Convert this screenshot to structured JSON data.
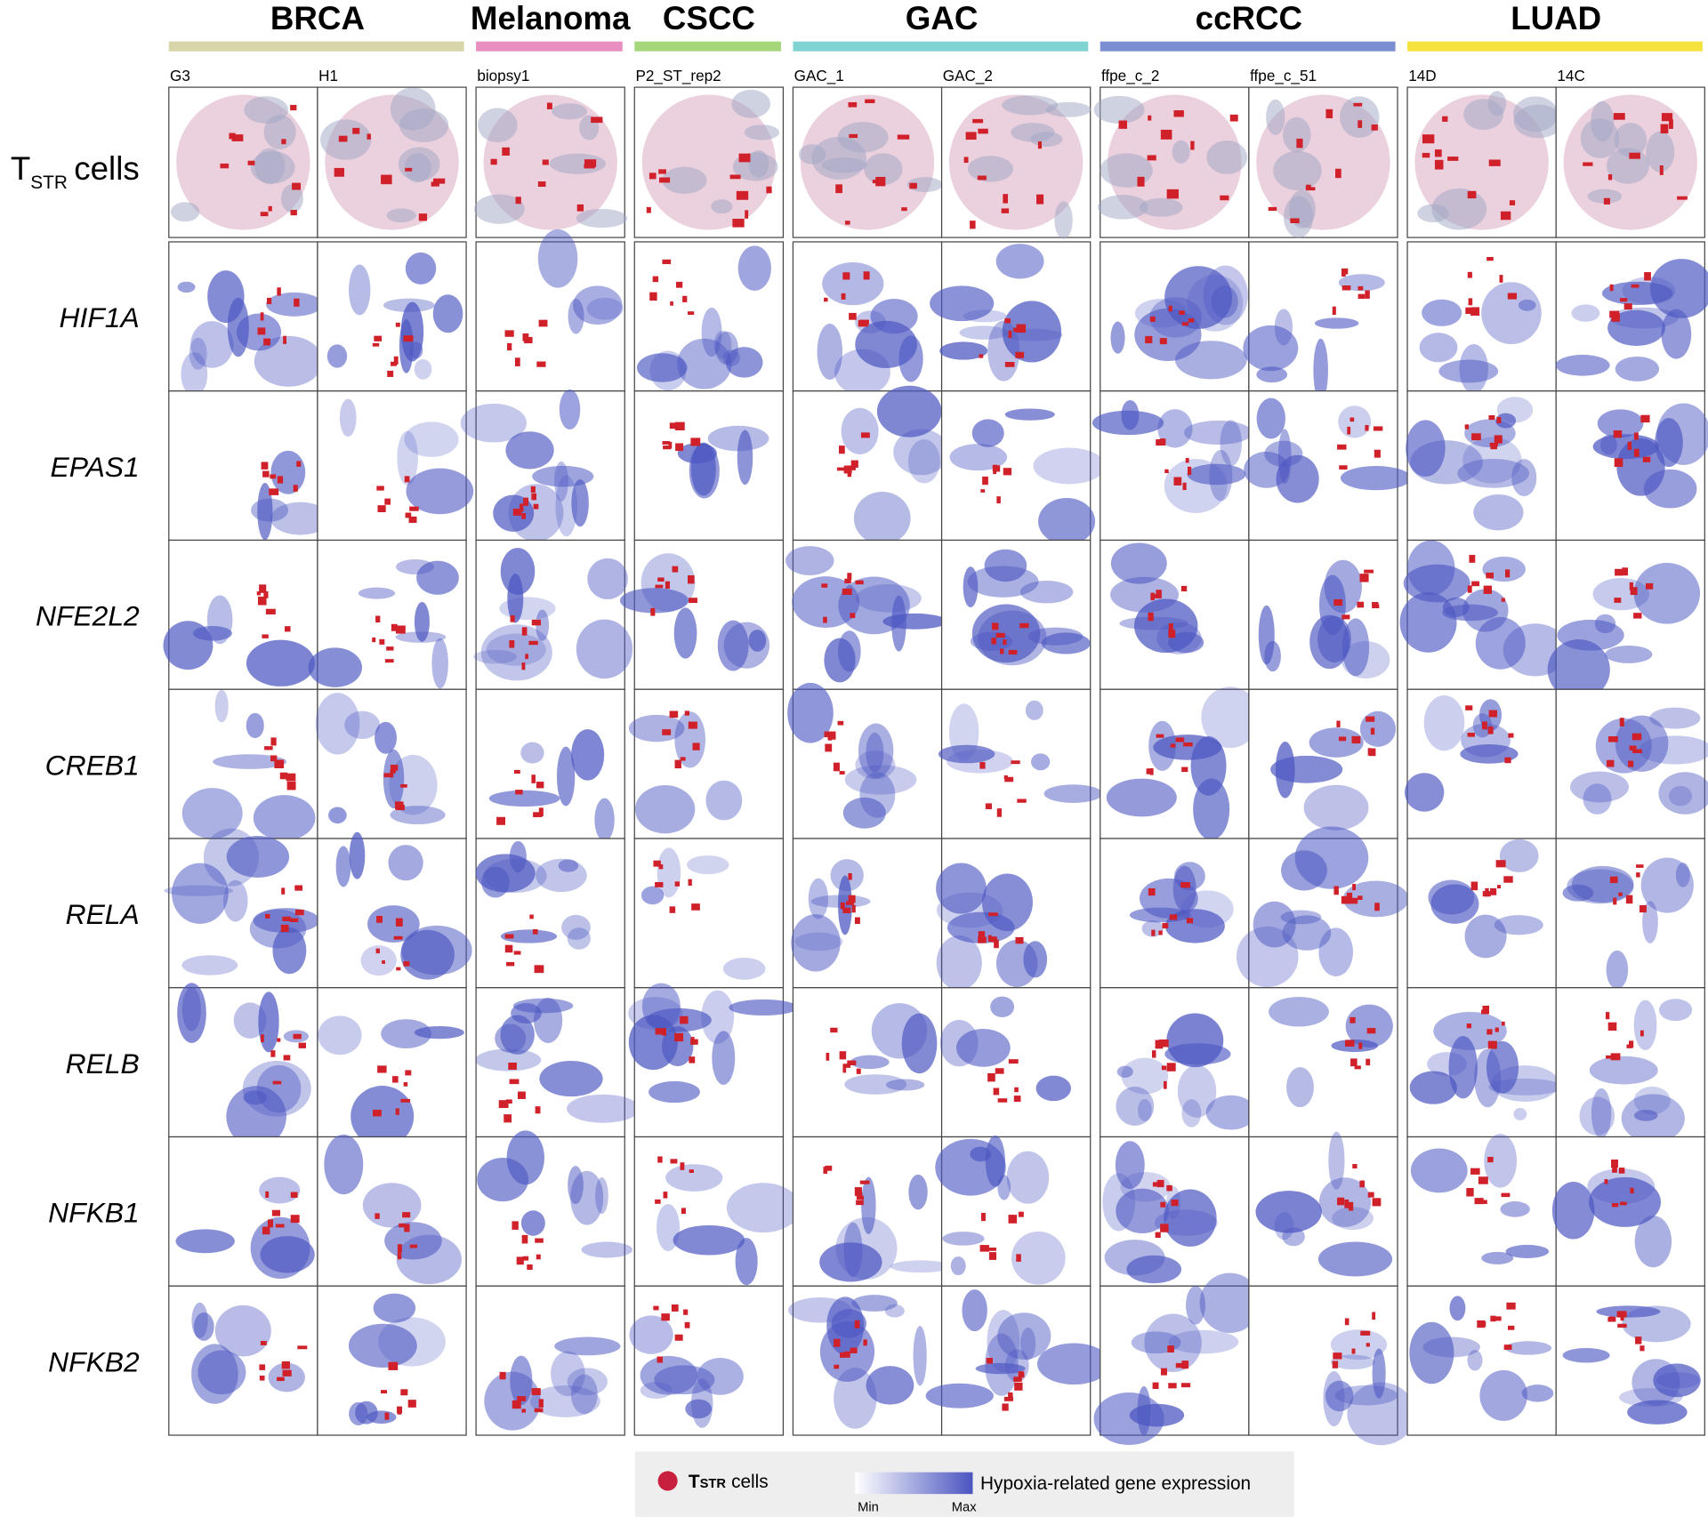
{
  "headers": [
    {
      "name": "BRCA",
      "color": "#d6d6a8",
      "samples": [
        "G3",
        "H1"
      ]
    },
    {
      "name": "Melanoma",
      "color": "#e88fc2",
      "samples": [
        "biopsy1"
      ]
    },
    {
      "name": "CSCC",
      "color": "#a6d67a",
      "samples": [
        "P2_ST_rep2"
      ]
    },
    {
      "name": "GAC",
      "color": "#7fd4d2",
      "samples": [
        "GAC_1",
        "GAC_2"
      ]
    },
    {
      "name": "ccRCC",
      "color": "#7b8ed1",
      "samples": [
        "ffpe_c_2",
        "ffpe_c_51"
      ]
    },
    {
      "name": "LUAD",
      "color": "#f5e23c",
      "samples": [
        "14D",
        "14C"
      ]
    }
  ],
  "rows": {
    "first": {
      "main": "T",
      "sub": "STR",
      "rest": "cells"
    },
    "genes": [
      "HIF1A",
      "EPAS1",
      "NFE2L2",
      "CREB1",
      "RELA",
      "RELB",
      "NFKB1",
      "NFKB2"
    ]
  },
  "legend": {
    "marker": {
      "main": "T",
      "sub": "STR",
      "rest": "cells"
    },
    "gradient_label": "Hypoxia-related gene expression",
    "min": "Min",
    "max": "Max"
  }
}
